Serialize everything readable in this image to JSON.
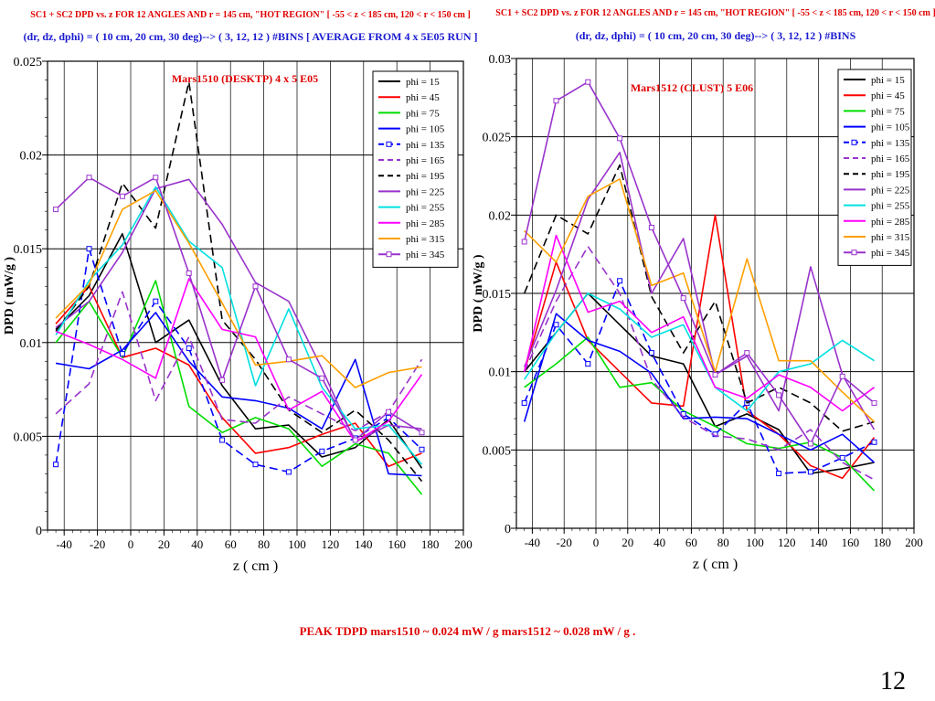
{
  "caption": "PEAK  TDPD  mars1510 ~  0.024  mW / g   mars1512 ~  0.028 mW / g .",
  "page_number": "12",
  "colors": {
    "title_red": "#e00000",
    "subtitle_blue": "#1a1ad0",
    "annotation_red": "#e00000"
  },
  "chart_data": [
    {
      "type": "line",
      "title": "SC1 + SC2  DPD vs. z  FOR 12 ANGLES AND  r = 145 cm,  \"HOT REGION\"  [ -55 < z < 185 cm,  120 < r < 150 cm ]",
      "subtitle": "(dr, dz, dphi) =  ( 10 cm, 20 cm, 30 deg)--> ( 3, 12, 12 ) #BINS [ AVERAGE FROM 4 x 5E05  RUN ]",
      "annotation": "Mars1510 (DESKTP)    4 x 5 E05",
      "xlabel": "z ( cm )",
      "ylabel": "DPD  ( mW/g )",
      "xlim": [
        -50,
        200
      ],
      "ylim": [
        0,
        0.025
      ],
      "xticks": [
        "-40",
        "-20",
        "0",
        "20",
        "40",
        "60",
        "80",
        "100",
        "120",
        "140",
        "160",
        "180",
        "200"
      ],
      "yticks": [
        "0",
        "0.005",
        "0.01",
        "0.015",
        "0.02",
        "0.025"
      ],
      "grid": true,
      "legend_position": "top-right",
      "x": [
        -45,
        -25,
        -5,
        15,
        35,
        55,
        75,
        95,
        115,
        135,
        155,
        175
      ],
      "series": [
        {
          "name": "phi = 15",
          "color": "#000000",
          "dash": "solid",
          "values": [
            0.0107,
            0.0125,
            0.0158,
            0.01,
            0.0112,
            0.0077,
            0.0054,
            0.0056,
            0.0039,
            0.0044,
            0.0059,
            0.0033
          ]
        },
        {
          "name": "phi = 45",
          "color": "#ff0000",
          "dash": "solid",
          "values": [
            0.011,
            0.013,
            0.0092,
            0.0097,
            0.0088,
            0.006,
            0.0041,
            0.0044,
            0.0051,
            0.0057,
            0.0034,
            0.0041
          ]
        },
        {
          "name": "phi = 75",
          "color": "#00dd00",
          "dash": "solid",
          "values": [
            0.01,
            0.0122,
            0.0092,
            0.0133,
            0.0066,
            0.0052,
            0.006,
            0.0054,
            0.0034,
            0.0046,
            0.0041,
            0.0019
          ]
        },
        {
          "name": "phi = 105",
          "color": "#0000ff",
          "dash": "solid",
          "values": [
            0.0089,
            0.0086,
            0.0096,
            0.0116,
            0.009,
            0.0071,
            0.0069,
            0.0065,
            0.0054,
            0.0091,
            0.003,
            0.0029
          ]
        },
        {
          "name": "phi = 135",
          "color": "#0000ff",
          "dash": "dashed",
          "marker": true,
          "values": [
            0.0035,
            0.015,
            0.0094,
            0.0122,
            0.0097,
            0.0048,
            0.0035,
            0.0031,
            0.0042,
            0.0049,
            0.006,
            0.0043
          ]
        },
        {
          "name": "phi = 165",
          "color": "#9933cc",
          "dash": "dashed",
          "values": [
            0.0062,
            0.0078,
            0.0127,
            0.0069,
            0.0103,
            0.0059,
            0.0057,
            0.0071,
            0.0062,
            0.0053,
            0.0063,
            0.0091
          ]
        },
        {
          "name": "phi = 195",
          "color": "#000000",
          "dash": "dashed",
          "values": [
            0.0106,
            0.013,
            0.0185,
            0.0161,
            0.0239,
            0.0112,
            0.0091,
            0.0064,
            0.0052,
            0.0064,
            0.0048,
            0.0026
          ]
        },
        {
          "name": "phi = 225",
          "color": "#9933cc",
          "dash": "solid",
          "values": [
            0.0108,
            0.0122,
            0.0148,
            0.0182,
            0.0187,
            0.0163,
            0.0132,
            0.0122,
            0.0086,
            0.0047,
            0.0056,
            0.0054
          ]
        },
        {
          "name": "phi = 255",
          "color": "#00e0e0",
          "dash": "solid",
          "values": [
            0.0104,
            0.0133,
            0.0152,
            0.0183,
            0.0154,
            0.014,
            0.0077,
            0.0118,
            0.0076,
            0.0054,
            0.0056,
            0.0035
          ]
        },
        {
          "name": "phi = 285",
          "color": "#ff00ff",
          "dash": "solid",
          "values": [
            0.0106,
            0.0099,
            0.0091,
            0.0081,
            0.0134,
            0.0107,
            0.0103,
            0.0064,
            0.0074,
            0.0047,
            0.0058,
            0.0083
          ]
        },
        {
          "name": "phi = 315",
          "color": "#ffa000",
          "dash": "solid",
          "values": [
            0.0113,
            0.0131,
            0.0171,
            0.0181,
            0.0153,
            0.0121,
            0.0088,
            0.009,
            0.0093,
            0.0076,
            0.0084,
            0.0087
          ]
        },
        {
          "name": "phi = 345",
          "color": "#9933cc",
          "dash": "solid",
          "marker": true,
          "values": [
            0.0171,
            0.0188,
            0.0178,
            0.0188,
            0.0137,
            0.008,
            0.013,
            0.0091,
            0.0081,
            0.0048,
            0.0063,
            0.0052
          ]
        }
      ]
    },
    {
      "type": "line",
      "title": "SC1 + SC2  DPD vs. z  FOR 12 ANGLES AND  r = 145 cm,  \"HOT REGION\"  [ -55 < z < 185 cm,  120 < r < 150 cm ]",
      "subtitle": "(dr, dz, dphi) =  ( 10 cm, 20 cm, 30 deg)--> ( 3, 12, 12 ) #BINS",
      "annotation": "Mars1512 (CLUST)     5 E06",
      "xlabel": "z ( cm )",
      "ylabel": "DPD  ( mW/g )",
      "xlim": [
        -50,
        200
      ],
      "ylim": [
        0,
        0.03
      ],
      "xticks": [
        "-40",
        "-20",
        "0",
        "20",
        "40",
        "60",
        "80",
        "100",
        "120",
        "140",
        "160",
        "180",
        "200"
      ],
      "yticks": [
        "0",
        "0.005",
        "0.01",
        "0.015",
        "0.02",
        "0.025",
        "0.03"
      ],
      "grid": true,
      "legend_position": "top-right",
      "x": [
        -45,
        -25,
        -5,
        15,
        35,
        55,
        75,
        95,
        115,
        135,
        155,
        175
      ],
      "series": [
        {
          "name": "phi = 15",
          "color": "#000000",
          "dash": "solid",
          "values": [
            0.01,
            0.0125,
            0.015,
            0.013,
            0.011,
            0.0105,
            0.0065,
            0.0073,
            0.0063,
            0.0035,
            0.0038,
            0.0042
          ]
        },
        {
          "name": "phi = 45",
          "color": "#ff0000",
          "dash": "solid",
          "values": [
            0.01,
            0.017,
            0.012,
            0.01,
            0.008,
            0.0078,
            0.02,
            0.0075,
            0.006,
            0.004,
            0.0032,
            0.0058
          ]
        },
        {
          "name": "phi = 75",
          "color": "#00dd00",
          "dash": "solid",
          "values": [
            0.009,
            0.0105,
            0.0122,
            0.009,
            0.0093,
            0.0075,
            0.0065,
            0.0054,
            0.0051,
            0.0055,
            0.0045,
            0.0024
          ]
        },
        {
          "name": "phi = 105",
          "color": "#0000ff",
          "dash": "solid",
          "values": [
            0.0068,
            0.0137,
            0.012,
            0.0113,
            0.0099,
            0.007,
            0.0071,
            0.007,
            0.006,
            0.005,
            0.006,
            0.0042
          ]
        },
        {
          "name": "phi = 135",
          "color": "#0000ff",
          "dash": "dashed",
          "marker": true,
          "values": [
            0.008,
            0.013,
            0.0105,
            0.0158,
            0.0112,
            0.0073,
            0.006,
            0.008,
            0.0035,
            0.0036,
            0.0045,
            0.0055
          ]
        },
        {
          "name": "phi = 165",
          "color": "#9933cc",
          "dash": "dashed",
          "values": [
            0.01,
            0.0145,
            0.018,
            0.015,
            0.0095,
            0.0071,
            0.0059,
            0.0057,
            0.005,
            0.0063,
            0.0042,
            0.0031
          ]
        },
        {
          "name": "phi = 195",
          "color": "#000000",
          "dash": "dashed",
          "values": [
            0.015,
            0.02,
            0.0188,
            0.0232,
            0.0148,
            0.0112,
            0.0145,
            0.008,
            0.009,
            0.008,
            0.0062,
            0.0068
          ]
        },
        {
          "name": "phi = 225",
          "color": "#9933cc",
          "dash": "solid",
          "values": [
            0.0103,
            0.0152,
            0.021,
            0.024,
            0.015,
            0.0185,
            0.0098,
            0.011,
            0.0075,
            0.0167,
            0.0098,
            0.0063
          ]
        },
        {
          "name": "phi = 255",
          "color": "#00e0e0",
          "dash": "solid",
          "values": [
            0.0095,
            0.0125,
            0.015,
            0.014,
            0.0122,
            0.013,
            0.009,
            0.0075,
            0.01,
            0.0105,
            0.012,
            0.0107
          ]
        },
        {
          "name": "phi = 285",
          "color": "#ff00ff",
          "dash": "solid",
          "values": [
            0.01,
            0.0187,
            0.0138,
            0.0145,
            0.0125,
            0.0135,
            0.009,
            0.0083,
            0.0098,
            0.009,
            0.0075,
            0.009
          ]
        },
        {
          "name": "phi = 315",
          "color": "#ffa000",
          "dash": "solid",
          "values": [
            0.019,
            0.017,
            0.0212,
            0.0223,
            0.0155,
            0.0163,
            0.01,
            0.0172,
            0.0107,
            0.0107,
            0.0087,
            0.0068
          ]
        },
        {
          "name": "phi = 345",
          "color": "#9933cc",
          "dash": "solid",
          "marker": true,
          "values": [
            0.0183,
            0.0273,
            0.0285,
            0.0249,
            0.0192,
            0.0147,
            0.0098,
            0.0112,
            0.0085,
            0.0054,
            0.0097,
            0.008
          ]
        }
      ]
    }
  ]
}
